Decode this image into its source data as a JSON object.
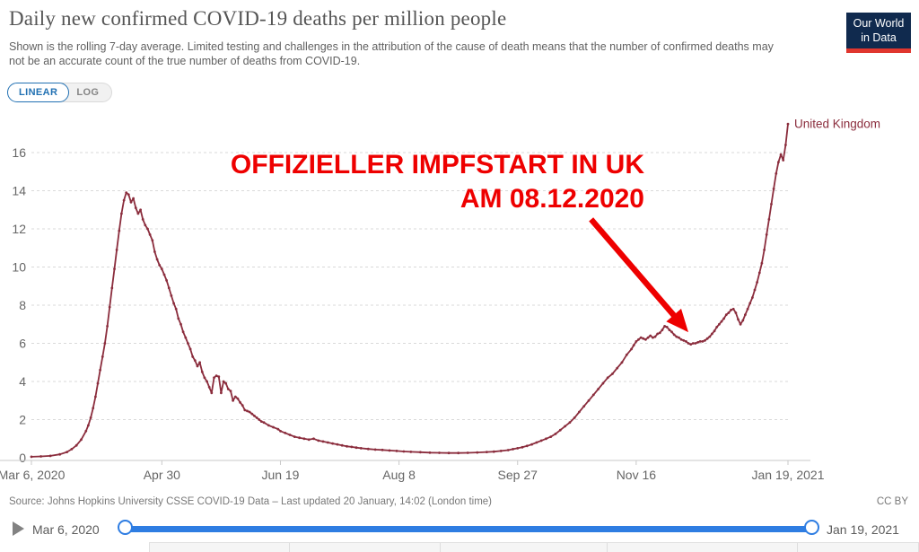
{
  "header": {
    "title": "Daily new confirmed COVID-19 deaths per million people",
    "subtitle": "Shown is the rolling 7-day average. Limited testing and challenges in the attribution of the cause of death means that the number of confirmed deaths may not be an accurate count of the true number of deaths from COVID-19.",
    "logo": {
      "line1": "Our World",
      "line2": "in Data",
      "bg_color": "#102a4e",
      "bar_color": "#e0362e"
    }
  },
  "controls": {
    "linear_label": "LINEAR",
    "log_label": "LOG",
    "active": "LINEAR",
    "accent": "#2271b3"
  },
  "annotation": {
    "line1": "OFFIZIELLER IMPFSTART IN UK",
    "line2": "AM 08.12.2020",
    "color": "#ee0000",
    "arrow_from": {
      "day": 236,
      "value": 12.5
    },
    "arrow_to": {
      "day": 277,
      "value": 6.35
    }
  },
  "chart_data": {
    "type": "line",
    "title": "Daily new confirmed COVID-19 deaths per million people",
    "xlabel": "",
    "ylabel": "",
    "grid": "dashed-horizontal",
    "x_start_date": "Mar 6, 2020",
    "x_end_date": "Jan 19, 2021",
    "x_range_days": [
      0,
      319
    ],
    "ylim": [
      0,
      17.8
    ],
    "y_ticks": [
      0,
      2,
      4,
      6,
      8,
      10,
      12,
      14,
      16
    ],
    "x_ticks": [
      {
        "label": "Mar 6, 2020",
        "day": 0
      },
      {
        "label": "Apr 30",
        "day": 55
      },
      {
        "label": "Jun 19",
        "day": 105
      },
      {
        "label": "Aug 8",
        "day": 155
      },
      {
        "label": "Sep 27",
        "day": 205
      },
      {
        "label": "Nov 16",
        "day": 255
      },
      {
        "label": "Jan 19, 2021",
        "day": 319
      }
    ],
    "series": [
      {
        "name": "United Kingdom",
        "color": "#8b2d3d",
        "points": [
          [
            0,
            0.05
          ],
          [
            4,
            0.07
          ],
          [
            8,
            0.1
          ],
          [
            12,
            0.18
          ],
          [
            15,
            0.3
          ],
          [
            17,
            0.45
          ],
          [
            19,
            0.65
          ],
          [
            21,
            0.95
          ],
          [
            23,
            1.4
          ],
          [
            24,
            1.7
          ],
          [
            25,
            2.1
          ],
          [
            26,
            2.6
          ],
          [
            27,
            3.2
          ],
          [
            28,
            3.9
          ],
          [
            29,
            4.6
          ],
          [
            30,
            5.3
          ],
          [
            31,
            6.0
          ],
          [
            32,
            6.9
          ],
          [
            33,
            7.9
          ],
          [
            34,
            8.9
          ],
          [
            35,
            9.9
          ],
          [
            36,
            10.9
          ],
          [
            37,
            11.9
          ],
          [
            38,
            12.8
          ],
          [
            39,
            13.5
          ],
          [
            40,
            13.9
          ],
          [
            41,
            13.8
          ],
          [
            42,
            13.4
          ],
          [
            43,
            13.6
          ],
          [
            44,
            13.1
          ],
          [
            45,
            12.8
          ],
          [
            46,
            13.0
          ],
          [
            47,
            12.5
          ],
          [
            48,
            12.2
          ],
          [
            49,
            12.0
          ],
          [
            50,
            11.7
          ],
          [
            51,
            11.4
          ],
          [
            52,
            10.8
          ],
          [
            53,
            10.4
          ],
          [
            54,
            10.1
          ],
          [
            55,
            9.9
          ],
          [
            56,
            9.6
          ],
          [
            57,
            9.3
          ],
          [
            58,
            8.9
          ],
          [
            59,
            8.5
          ],
          [
            60,
            8.1
          ],
          [
            61,
            7.8
          ],
          [
            62,
            7.3
          ],
          [
            63,
            7.0
          ],
          [
            64,
            6.6
          ],
          [
            65,
            6.3
          ],
          [
            66,
            6.0
          ],
          [
            67,
            5.7
          ],
          [
            68,
            5.3
          ],
          [
            69,
            5.1
          ],
          [
            70,
            4.8
          ],
          [
            71,
            5.0
          ],
          [
            72,
            4.5
          ],
          [
            73,
            4.2
          ],
          [
            74,
            4.0
          ],
          [
            75,
            3.7
          ],
          [
            76,
            3.4
          ],
          [
            77,
            4.2
          ],
          [
            78,
            4.3
          ],
          [
            79,
            4.25
          ],
          [
            80,
            3.4
          ],
          [
            81,
            4.0
          ],
          [
            82,
            3.9
          ],
          [
            83,
            3.6
          ],
          [
            84,
            3.5
          ],
          [
            85,
            3.0
          ],
          [
            86,
            3.2
          ],
          [
            87,
            3.1
          ],
          [
            88,
            2.9
          ],
          [
            89,
            2.75
          ],
          [
            90,
            2.5
          ],
          [
            91,
            2.45
          ],
          [
            92,
            2.4
          ],
          [
            93,
            2.3
          ],
          [
            94,
            2.2
          ],
          [
            95,
            2.1
          ],
          [
            96,
            2.0
          ],
          [
            97,
            1.9
          ],
          [
            98,
            1.85
          ],
          [
            100,
            1.7
          ],
          [
            102,
            1.6
          ],
          [
            104,
            1.5
          ],
          [
            105,
            1.4
          ],
          [
            107,
            1.3
          ],
          [
            109,
            1.2
          ],
          [
            111,
            1.1
          ],
          [
            113,
            1.05
          ],
          [
            115,
            1.0
          ],
          [
            117,
            0.95
          ],
          [
            119,
            1.0
          ],
          [
            121,
            0.9
          ],
          [
            123,
            0.85
          ],
          [
            125,
            0.8
          ],
          [
            127,
            0.75
          ],
          [
            129,
            0.7
          ],
          [
            131,
            0.65
          ],
          [
            133,
            0.6
          ],
          [
            135,
            0.57
          ],
          [
            137,
            0.53
          ],
          [
            139,
            0.5
          ],
          [
            142,
            0.46
          ],
          [
            145,
            0.43
          ],
          [
            148,
            0.41
          ],
          [
            151,
            0.38
          ],
          [
            154,
            0.36
          ],
          [
            157,
            0.33
          ],
          [
            160,
            0.31
          ],
          [
            164,
            0.29
          ],
          [
            168,
            0.27
          ],
          [
            172,
            0.26
          ],
          [
            176,
            0.25
          ],
          [
            180,
            0.25
          ],
          [
            184,
            0.26
          ],
          [
            188,
            0.28
          ],
          [
            192,
            0.3
          ],
          [
            195,
            0.32
          ],
          [
            198,
            0.36
          ],
          [
            201,
            0.4
          ],
          [
            203,
            0.45
          ],
          [
            205,
            0.5
          ],
          [
            207,
            0.55
          ],
          [
            209,
            0.62
          ],
          [
            211,
            0.7
          ],
          [
            213,
            0.8
          ],
          [
            215,
            0.9
          ],
          [
            217,
            1.0
          ],
          [
            219,
            1.1
          ],
          [
            221,
            1.25
          ],
          [
            223,
            1.45
          ],
          [
            225,
            1.65
          ],
          [
            227,
            1.85
          ],
          [
            229,
            2.1
          ],
          [
            231,
            2.4
          ],
          [
            233,
            2.7
          ],
          [
            235,
            3.0
          ],
          [
            237,
            3.3
          ],
          [
            239,
            3.6
          ],
          [
            241,
            3.9
          ],
          [
            243,
            4.2
          ],
          [
            245,
            4.4
          ],
          [
            247,
            4.7
          ],
          [
            249,
            5.0
          ],
          [
            251,
            5.4
          ],
          [
            253,
            5.7
          ],
          [
            254,
            5.9
          ],
          [
            255,
            6.1
          ],
          [
            256,
            6.2
          ],
          [
            257,
            6.3
          ],
          [
            258,
            6.25
          ],
          [
            259,
            6.2
          ],
          [
            260,
            6.3
          ],
          [
            261,
            6.4
          ],
          [
            262,
            6.3
          ],
          [
            263,
            6.35
          ],
          [
            264,
            6.5
          ],
          [
            265,
            6.55
          ],
          [
            266,
            6.7
          ],
          [
            267,
            6.9
          ],
          [
            268,
            6.85
          ],
          [
            269,
            6.7
          ],
          [
            270,
            6.6
          ],
          [
            271,
            6.45
          ],
          [
            272,
            6.35
          ],
          [
            273,
            6.3
          ],
          [
            274,
            6.2
          ],
          [
            275,
            6.15
          ],
          [
            276,
            6.1
          ],
          [
            277,
            6.0
          ],
          [
            278,
            5.95
          ],
          [
            279,
            6.0
          ],
          [
            280,
            6.0
          ],
          [
            281,
            6.05
          ],
          [
            282,
            6.1
          ],
          [
            283,
            6.1
          ],
          [
            284,
            6.15
          ],
          [
            285,
            6.25
          ],
          [
            286,
            6.35
          ],
          [
            287,
            6.5
          ],
          [
            288,
            6.65
          ],
          [
            289,
            6.85
          ],
          [
            290,
            7.0
          ],
          [
            291,
            7.15
          ],
          [
            292,
            7.3
          ],
          [
            293,
            7.5
          ],
          [
            294,
            7.6
          ],
          [
            295,
            7.75
          ],
          [
            296,
            7.8
          ],
          [
            297,
            7.6
          ],
          [
            298,
            7.25
          ],
          [
            299,
            7.0
          ],
          [
            300,
            7.2
          ],
          [
            301,
            7.5
          ],
          [
            302,
            7.8
          ],
          [
            303,
            8.1
          ],
          [
            304,
            8.4
          ],
          [
            305,
            8.8
          ],
          [
            306,
            9.2
          ],
          [
            307,
            9.7
          ],
          [
            308,
            10.2
          ],
          [
            309,
            10.9
          ],
          [
            310,
            11.7
          ],
          [
            311,
            12.5
          ],
          [
            312,
            13.3
          ],
          [
            313,
            14.1
          ],
          [
            314,
            14.9
          ],
          [
            315,
            15.5
          ],
          [
            316,
            15.9
          ],
          [
            317,
            15.6
          ],
          [
            318,
            16.4
          ],
          [
            319,
            17.5
          ]
        ]
      }
    ],
    "legend": "end-of-line-label"
  },
  "footer": {
    "source": "Source: Johns Hopkins University CSSE COVID-19 Data – Last updated 20 January, 14:02 (London time)",
    "license": "CC BY"
  },
  "timeline": {
    "start_label": "Mar 6, 2020",
    "end_label": "Jan 19, 2021",
    "play_icon": "play-triangle",
    "track_color": "#2e7de2"
  }
}
